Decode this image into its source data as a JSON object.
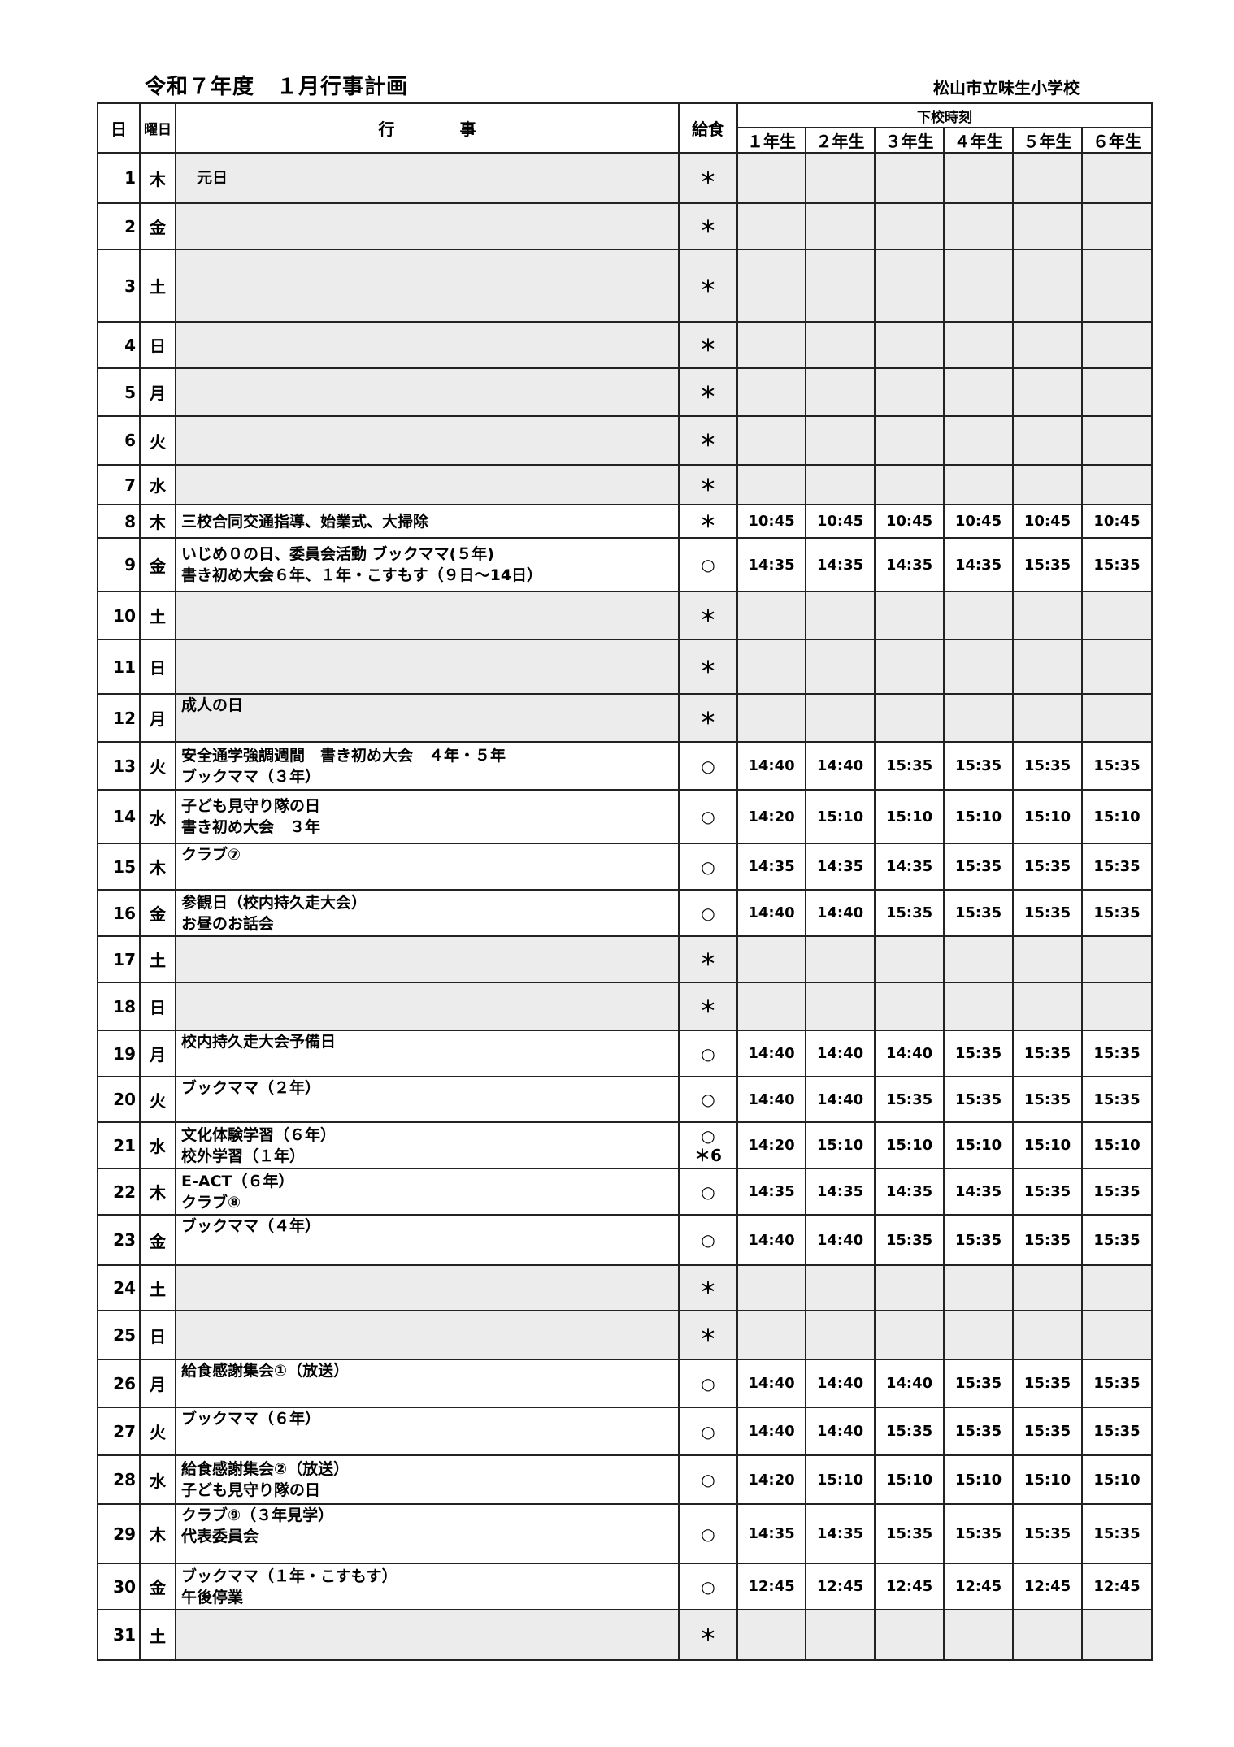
{
  "title": "令和７年度　１月行事計画",
  "school": "松山市立味生小学校",
  "headers": {
    "day": "日",
    "weekday": "曜日",
    "event": "行　　　　事",
    "lunch": "給食",
    "dismissal": "下校時刻",
    "grades": [
      "１年生",
      "２年生",
      "３年生",
      "４年生",
      "５年生",
      "６年生"
    ]
  },
  "rows": [
    {
      "day": "1",
      "weekday": "木",
      "event": "　元日",
      "lunch": "＊",
      "holiday": true,
      "times": []
    },
    {
      "day": "2",
      "weekday": "金",
      "event": "",
      "lunch": "＊",
      "holiday": true,
      "times": []
    },
    {
      "day": "3",
      "weekday": "土",
      "event": "",
      "lunch": "＊",
      "holiday": true,
      "times": []
    },
    {
      "day": "4",
      "weekday": "日",
      "event": "",
      "lunch": "＊",
      "holiday": true,
      "times": []
    },
    {
      "day": "5",
      "weekday": "月",
      "event": "",
      "lunch": "＊",
      "holiday": true,
      "times": []
    },
    {
      "day": "6",
      "weekday": "火",
      "event": "",
      "lunch": "＊",
      "holiday": true,
      "times": []
    },
    {
      "day": "7",
      "weekday": "水",
      "event": "",
      "lunch": "＊",
      "holiday": true,
      "times": []
    },
    {
      "day": "8",
      "weekday": "木",
      "event": "三校合同交通指導、始業式、大掃除",
      "lunch": "＊",
      "holiday": false,
      "times": [
        "10:45",
        "10:45",
        "10:45",
        "10:45",
        "10:45",
        "10:45"
      ]
    },
    {
      "day": "9",
      "weekday": "金",
      "event": "いじめ０の日、委員会活動 ブックママ(５年)\n書き初め大会６年、１年・こすもす（９日～14日）",
      "lunch": "○",
      "holiday": false,
      "times": [
        "14:35",
        "14:35",
        "14:35",
        "14:35",
        "15:35",
        "15:35"
      ]
    },
    {
      "day": "10",
      "weekday": "土",
      "event": "",
      "lunch": "＊",
      "holiday": true,
      "times": []
    },
    {
      "day": "11",
      "weekday": "日",
      "event": "",
      "lunch": "＊",
      "holiday": true,
      "times": []
    },
    {
      "day": "12",
      "weekday": "月",
      "event": "成人の日",
      "lunch": "＊",
      "holiday": true,
      "top": true,
      "times": []
    },
    {
      "day": "13",
      "weekday": "火",
      "event": "安全通学強調週間　書き初め大会　４年・５年\nブックママ（３年）",
      "lunch": "○",
      "holiday": false,
      "times": [
        "14:40",
        "14:40",
        "15:35",
        "15:35",
        "15:35",
        "15:35"
      ]
    },
    {
      "day": "14",
      "weekday": "水",
      "event": "子ども見守り隊の日\n書き初め大会　３年",
      "lunch": "○",
      "holiday": false,
      "times": [
        "14:20",
        "15:10",
        "15:10",
        "15:10",
        "15:10",
        "15:10"
      ]
    },
    {
      "day": "15",
      "weekday": "木",
      "event": "クラブ⑦",
      "lunch": "○",
      "holiday": false,
      "top": true,
      "times": [
        "14:35",
        "14:35",
        "14:35",
        "15:35",
        "15:35",
        "15:35"
      ]
    },
    {
      "day": "16",
      "weekday": "金",
      "event": "参観日（校内持久走大会）\nお昼のお話会",
      "lunch": "○",
      "holiday": false,
      "times": [
        "14:40",
        "14:40",
        "15:35",
        "15:35",
        "15:35",
        "15:35"
      ]
    },
    {
      "day": "17",
      "weekday": "土",
      "event": "",
      "lunch": "＊",
      "holiday": true,
      "times": []
    },
    {
      "day": "18",
      "weekday": "日",
      "event": "",
      "lunch": "＊",
      "holiday": true,
      "times": []
    },
    {
      "day": "19",
      "weekday": "月",
      "event": "校内持久走大会予備日",
      "lunch": "○",
      "holiday": false,
      "top": true,
      "times": [
        "14:40",
        "14:40",
        "14:40",
        "15:35",
        "15:35",
        "15:35"
      ]
    },
    {
      "day": "20",
      "weekday": "火",
      "event": "ブックママ（２年）",
      "lunch": "○",
      "holiday": false,
      "top": true,
      "times": [
        "14:40",
        "14:40",
        "15:35",
        "15:35",
        "15:35",
        "15:35"
      ]
    },
    {
      "day": "21",
      "weekday": "水",
      "event": "文化体験学習（６年）\n校外学習（１年）",
      "lunch": "○\n＊6",
      "holiday": false,
      "times": [
        "14:20",
        "15:10",
        "15:10",
        "15:10",
        "15:10",
        "15:10"
      ]
    },
    {
      "day": "22",
      "weekday": "木",
      "event": "E-ACT（６年）\nクラブ⑧",
      "lunch": "○",
      "holiday": false,
      "times": [
        "14:35",
        "14:35",
        "14:35",
        "14:35",
        "15:35",
        "15:35"
      ]
    },
    {
      "day": "23",
      "weekday": "金",
      "event": "ブックママ（４年）",
      "lunch": "○",
      "holiday": false,
      "top": true,
      "times": [
        "14:40",
        "14:40",
        "15:35",
        "15:35",
        "15:35",
        "15:35"
      ]
    },
    {
      "day": "24",
      "weekday": "土",
      "event": "",
      "lunch": "＊",
      "holiday": true,
      "times": []
    },
    {
      "day": "25",
      "weekday": "日",
      "event": "",
      "lunch": "＊",
      "holiday": true,
      "times": []
    },
    {
      "day": "26",
      "weekday": "月",
      "event": "給食感謝集会①（放送）",
      "lunch": "○",
      "holiday": false,
      "top": true,
      "times": [
        "14:40",
        "14:40",
        "14:40",
        "15:35",
        "15:35",
        "15:35"
      ]
    },
    {
      "day": "27",
      "weekday": "火",
      "event": "ブックママ（６年）",
      "lunch": "○",
      "holiday": false,
      "top": true,
      "times": [
        "14:40",
        "14:40",
        "15:35",
        "15:35",
        "15:35",
        "15:35"
      ]
    },
    {
      "day": "28",
      "weekday": "水",
      "event": "給食感謝集会②（放送）\n子ども見守り隊の日",
      "lunch": "○",
      "holiday": false,
      "times": [
        "14:20",
        "15:10",
        "15:10",
        "15:10",
        "15:10",
        "15:10"
      ]
    },
    {
      "day": "29",
      "weekday": "木",
      "event": "クラブ⑨（３年見学）\n代表委員会",
      "lunch": "○",
      "holiday": false,
      "top": true,
      "times": [
        "14:35",
        "14:35",
        "15:35",
        "15:35",
        "15:35",
        "15:35"
      ]
    },
    {
      "day": "30",
      "weekday": "金",
      "event": "ブックママ（１年・こすもす）\n午後停業",
      "lunch": "○",
      "holiday": false,
      "times": [
        "12:45",
        "12:45",
        "12:45",
        "12:45",
        "12:45",
        "12:45"
      ]
    },
    {
      "day": "31",
      "weekday": "土",
      "event": "",
      "lunch": "＊",
      "holiday": true,
      "times": []
    }
  ]
}
